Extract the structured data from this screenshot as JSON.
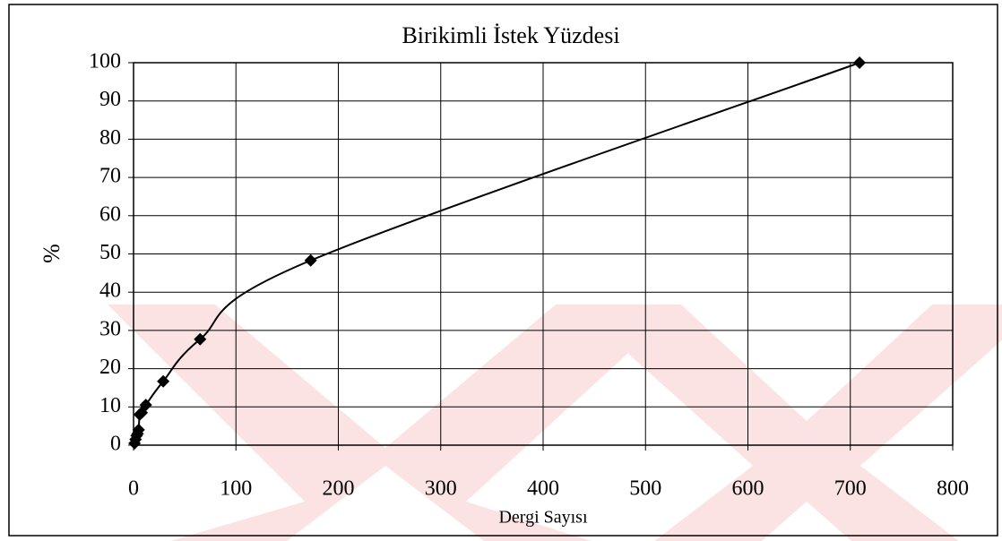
{
  "chart_data": {
    "type": "scatter",
    "title": "Birikimli İstek Yüzdesi",
    "xlabel": "Dergi Sayısı",
    "ylabel": "%",
    "x": [
      1,
      2,
      3,
      4,
      5,
      6,
      8,
      12,
      29,
      65,
      173,
      709
    ],
    "values": [
      0.5,
      1.5,
      2.5,
      3,
      4,
      8,
      8.5,
      10.5,
      16.7,
      27.7,
      48.3,
      100
    ],
    "color": "#000000",
    "marker": "diamond",
    "line": "smooth",
    "xlim": [
      0,
      800
    ],
    "xticks": [
      0,
      100,
      200,
      300,
      400,
      500,
      600,
      700,
      800
    ],
    "ylim": [
      0,
      100
    ],
    "yticks": [
      0,
      10,
      20,
      30,
      40,
      50,
      60,
      70,
      80,
      90,
      100
    ],
    "grid": true
  }
}
